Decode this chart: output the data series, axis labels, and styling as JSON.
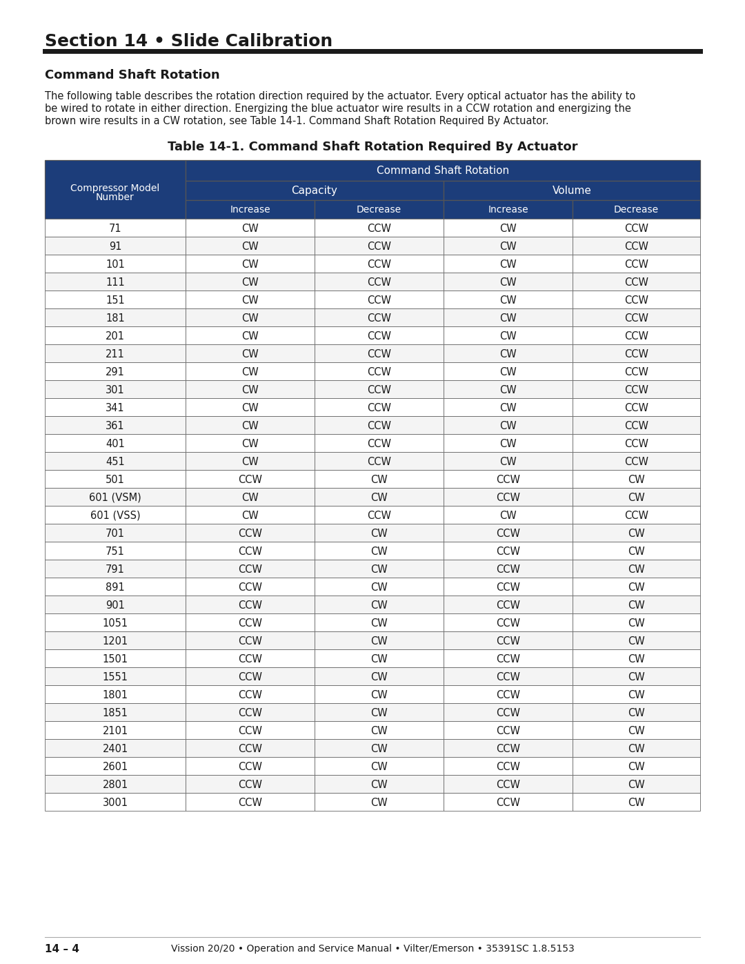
{
  "section_title": "Section 14 • Slide Calibration",
  "subsection_title": "Command Shaft Rotation",
  "body_line1": "The following table describes the rotation direction required by the actuator. Every optical actuator has the ability to",
  "body_line2": "be wired to rotate in either direction. Energizing the blue actuator wire results in a CCW rotation and energizing the",
  "body_line3": "brown wire results in a CW rotation, see Table 14-1. Command Shaft Rotation Required By Actuator.",
  "table_title": "Table 14-1. Command Shaft Rotation Required By Actuator",
  "header_bg": "#1c3d7a",
  "header_text_color": "#ffffff",
  "border_color": "#555555",
  "rows": [
    [
      "71",
      "CW",
      "CCW",
      "CW",
      "CCW"
    ],
    [
      "91",
      "CW",
      "CCW",
      "CW",
      "CCW"
    ],
    [
      "101",
      "CW",
      "CCW",
      "CW",
      "CCW"
    ],
    [
      "111",
      "CW",
      "CCW",
      "CW",
      "CCW"
    ],
    [
      "151",
      "CW",
      "CCW",
      "CW",
      "CCW"
    ],
    [
      "181",
      "CW",
      "CCW",
      "CW",
      "CCW"
    ],
    [
      "201",
      "CW",
      "CCW",
      "CW",
      "CCW"
    ],
    [
      "211",
      "CW",
      "CCW",
      "CW",
      "CCW"
    ],
    [
      "291",
      "CW",
      "CCW",
      "CW",
      "CCW"
    ],
    [
      "301",
      "CW",
      "CCW",
      "CW",
      "CCW"
    ],
    [
      "341",
      "CW",
      "CCW",
      "CW",
      "CCW"
    ],
    [
      "361",
      "CW",
      "CCW",
      "CW",
      "CCW"
    ],
    [
      "401",
      "CW",
      "CCW",
      "CW",
      "CCW"
    ],
    [
      "451",
      "CW",
      "CCW",
      "CW",
      "CCW"
    ],
    [
      "501",
      "CCW",
      "CW",
      "CCW",
      "CW"
    ],
    [
      "601 (VSM)",
      "CW",
      "CW",
      "CCW",
      "CW"
    ],
    [
      "601 (VSS)",
      "CW",
      "CCW",
      "CW",
      "CCW"
    ],
    [
      "701",
      "CCW",
      "CW",
      "CCW",
      "CW"
    ],
    [
      "751",
      "CCW",
      "CW",
      "CCW",
      "CW"
    ],
    [
      "791",
      "CCW",
      "CW",
      "CCW",
      "CW"
    ],
    [
      "891",
      "CCW",
      "CW",
      "CCW",
      "CW"
    ],
    [
      "901",
      "CCW",
      "CW",
      "CCW",
      "CW"
    ],
    [
      "1051",
      "CCW",
      "CW",
      "CCW",
      "CW"
    ],
    [
      "1201",
      "CCW",
      "CW",
      "CCW",
      "CW"
    ],
    [
      "1501",
      "CCW",
      "CW",
      "CCW",
      "CW"
    ],
    [
      "1551",
      "CCW",
      "CW",
      "CCW",
      "CW"
    ],
    [
      "1801",
      "CCW",
      "CW",
      "CCW",
      "CW"
    ],
    [
      "1851",
      "CCW",
      "CW",
      "CCW",
      "CW"
    ],
    [
      "2101",
      "CCW",
      "CW",
      "CCW",
      "CW"
    ],
    [
      "2401",
      "CCW",
      "CW",
      "CCW",
      "CW"
    ],
    [
      "2601",
      "CCW",
      "CW",
      "CCW",
      "CW"
    ],
    [
      "2801",
      "CCW",
      "CW",
      "CCW",
      "CW"
    ],
    [
      "3001",
      "CCW",
      "CW",
      "CCW",
      "CW"
    ]
  ],
  "footer_left": "14 – 4",
  "footer_center": "Vission 20/20 • Operation and Service Manual • Vilter/Emerson • 35391SC 1.8.5153",
  "bg_color": "#ffffff"
}
